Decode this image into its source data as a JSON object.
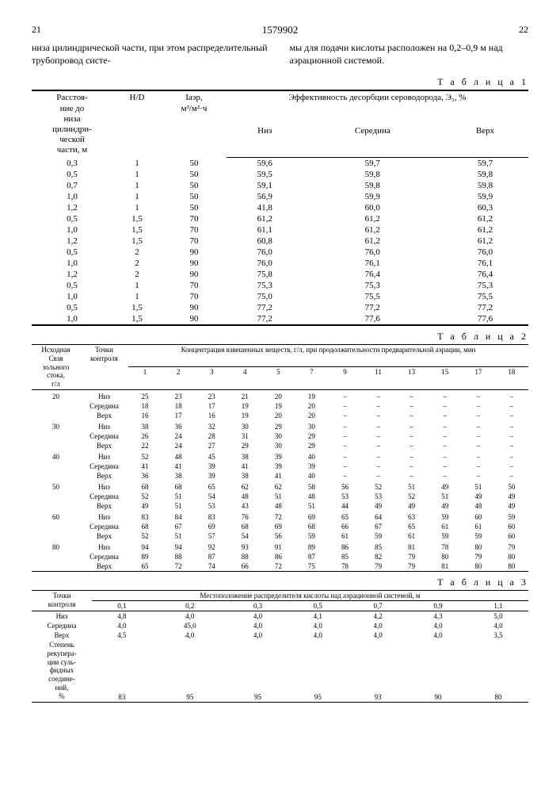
{
  "header": {
    "left_page": "21",
    "doc_number": "1579902",
    "right_page": "22"
  },
  "intro": {
    "left": "низа цилиндрической части, при этом распределительный трубопровод систе-",
    "right": "мы для подачи кислоты расположен на 0,2–0,9 м над аэрационной системой."
  },
  "table1": {
    "caption": "Т а б л и ц а 1",
    "headers": {
      "dist": "Расстоя-\nние до\nниза\nцилиндри-\nческой\nчасти, м",
      "hd": "H/D",
      "iaer": "Iаэр,\nм³/м²·ч",
      "eff": "Эффективность десорбции сероводорода, Э₅, %",
      "niz": "Низ",
      "sred": "Середина",
      "verh": "Верх"
    },
    "rows": [
      [
        "0,3",
        "1",
        "50",
        "59,6",
        "59,7",
        "59,7"
      ],
      [
        "0,5",
        "1",
        "50",
        "59,5",
        "59,8",
        "59,8"
      ],
      [
        "0,7",
        "1",
        "50",
        "59,1",
        "59,8",
        "59,8"
      ],
      [
        "1,0",
        "1",
        "50",
        "56,9",
        "59,9",
        "59,9"
      ],
      [
        "1,2",
        "1",
        "50",
        "41,8",
        "60,0",
        "60,3"
      ],
      [
        "0,5",
        "1,5",
        "70",
        "61,2",
        "61,2",
        "61,2"
      ],
      [
        "1,0",
        "1,5",
        "70",
        "61,1",
        "61,2",
        "61,2"
      ],
      [
        "1,2",
        "1,5",
        "70",
        "60,8",
        "61,2",
        "61,2"
      ],
      [
        "0,5",
        "2",
        "90",
        "76,0",
        "76,0",
        "76,0"
      ],
      [
        "1,0",
        "2",
        "90",
        "76,0",
        "76,1",
        "76,1"
      ],
      [
        "1,2",
        "2",
        "90",
        "75,8",
        "76,4",
        "76,4"
      ],
      [
        "0,5",
        "1",
        "70",
        "75,3",
        "75,3",
        "75,3"
      ],
      [
        "1,0",
        "1",
        "70",
        "75,0",
        "75,5",
        "75,5"
      ],
      [
        "0,5",
        "1,5",
        "90",
        "77,2",
        "77,2",
        "77,2"
      ],
      [
        "1,0",
        "1,5",
        "90",
        "77,2",
        "77,6",
        "77,6"
      ]
    ]
  },
  "table2": {
    "caption": "Т а б л и ц а 2",
    "headers": {
      "c": "Исходная\nСвзв\nзольного\nстока,\nг/л",
      "pt": "Точки\nконтроля",
      "conc": "Концентрация взвешенных веществ, г/л, при продолжительности предварительной аэрации, мин",
      "mins": [
        "1",
        "2",
        "3",
        "4",
        "5",
        "7",
        "9",
        "11",
        "13",
        "15",
        "17",
        "18"
      ]
    },
    "groups": [
      {
        "c": "20",
        "rows": [
          [
            "Низ",
            "25",
            "23",
            "23",
            "21",
            "20",
            "19",
            "–",
            "–",
            "–",
            "–",
            "–",
            "–"
          ],
          [
            "Середина",
            "18",
            "18",
            "17",
            "19",
            "19",
            "20",
            "–",
            "–",
            "–",
            "–",
            "–",
            "–"
          ],
          [
            "Верх",
            "16",
            "17",
            "16",
            "19",
            "20",
            "20",
            "–",
            "–",
            "–",
            "–",
            "–",
            "–"
          ]
        ]
      },
      {
        "c": "30",
        "rows": [
          [
            "Низ",
            "38",
            "36",
            "32",
            "30",
            "29",
            "30",
            "–",
            "–",
            "–",
            "–",
            "–",
            "–"
          ],
          [
            "Середина",
            "26",
            "24",
            "28",
            "31",
            "30",
            "29",
            "–",
            "–",
            "–",
            "–",
            "–",
            "–"
          ],
          [
            "Верх",
            "22",
            "24",
            "27",
            "29",
            "30",
            "29",
            "–",
            "–",
            "–",
            "–",
            "–",
            "–"
          ]
        ]
      },
      {
        "c": "40",
        "rows": [
          [
            "Низ",
            "52",
            "48",
            "45",
            "38",
            "39",
            "40",
            "–",
            "–",
            "–",
            "–",
            "–",
            "–"
          ],
          [
            "Середина",
            "41",
            "41",
            "39",
            "41",
            "39",
            "39",
            "–",
            "–",
            "–",
            "–",
            "–",
            "–"
          ],
          [
            "Верх",
            "36",
            "38",
            "39",
            "38",
            "41",
            "40",
            "–",
            "–",
            "–",
            "–",
            "–",
            "–"
          ]
        ]
      },
      {
        "c": "50",
        "rows": [
          [
            "Низ",
            "68",
            "68",
            "65",
            "62",
            "62",
            "58",
            "56",
            "52",
            "51",
            "49",
            "51",
            "50"
          ],
          [
            "Середина",
            "52",
            "51",
            "54",
            "48",
            "51",
            "48",
            "53",
            "53",
            "52",
            "51",
            "49",
            "49"
          ],
          [
            "Верх",
            "49",
            "51",
            "53",
            "43",
            "48",
            "51",
            "44",
            "49",
            "49",
            "49",
            "48",
            "49"
          ]
        ]
      },
      {
        "c": "60",
        "rows": [
          [
            "Низ",
            "83",
            "84",
            "83",
            "76",
            "72",
            "69",
            "65",
            "64",
            "63",
            "59",
            "60",
            "59"
          ],
          [
            "Середина",
            "68",
            "67",
            "69",
            "68",
            "69",
            "68",
            "66",
            "67",
            "65",
            "61",
            "61",
            "60"
          ],
          [
            "Верх",
            "52",
            "51",
            "57",
            "54",
            "56",
            "59",
            "61",
            "59",
            "61",
            "59",
            "59",
            "60"
          ]
        ]
      },
      {
        "c": "80",
        "rows": [
          [
            "Низ",
            "94",
            "94",
            "92",
            "93",
            "91",
            "89",
            "86",
            "85",
            "81",
            "78",
            "80",
            "79"
          ],
          [
            "Середина",
            "89",
            "88",
            "87",
            "88",
            "86",
            "87",
            "85",
            "82",
            "79",
            "80",
            "79",
            "80"
          ],
          [
            "Верх",
            "65",
            "72",
            "74",
            "66",
            "72",
            "75",
            "78",
            "79",
            "79",
            "81",
            "80",
            "80"
          ]
        ]
      }
    ]
  },
  "table3": {
    "caption": "Т а б л и ц а 3",
    "headers": {
      "pt": "Точки\nконтроля",
      "loc": "Местоположение распределителя кислоты над аэрационной системой, м",
      "cols": [
        "0,1",
        "0,2",
        "0,3",
        "0,5",
        "0,7",
        "0,9",
        "1,1"
      ]
    },
    "rows": [
      [
        "Низ",
        "4,8",
        "4,0",
        "4,0",
        "4,1",
        "4,2",
        "4,3",
        "5,0"
      ],
      [
        "Середина",
        "4,0",
        "45,0",
        "4,0",
        "4,0",
        "4,0",
        "4,0",
        "4,0"
      ],
      [
        "Верх",
        "4,5",
        "4,0",
        "4,0",
        "4,0",
        "4,0",
        "4,0",
        "3,5"
      ]
    ],
    "footer_label": "Степень\nрекупера-\nции суль-\nфидных\nсоедине-\nний,\n%",
    "footer_vals": [
      "83",
      "95",
      "95",
      "95",
      "93",
      "90",
      "80"
    ]
  }
}
